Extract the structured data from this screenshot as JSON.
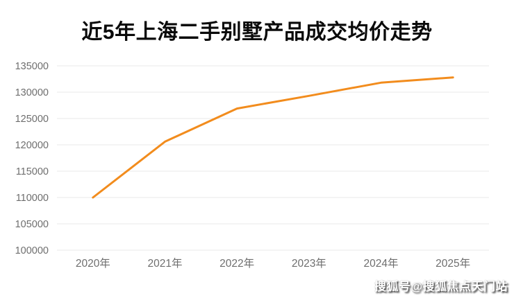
{
  "chart_data": {
    "type": "line",
    "title": "近5年上海二手别墅产品成交均价走势",
    "categories": [
      "2020年",
      "2021年",
      "2022年",
      "2023年",
      "2024年",
      "2025年"
    ],
    "values": [
      110000,
      120600,
      126900,
      129300,
      131800,
      132800
    ],
    "xlabel": "",
    "ylabel": "",
    "ylim": [
      100000,
      135000
    ],
    "ytick_interval": 5000,
    "ytick_labels": [
      "100000",
      "105000",
      "110000",
      "115000",
      "120000",
      "125000",
      "130000",
      "135000"
    ],
    "grid": "horizontal-only",
    "legend": "none",
    "line_color": "#f28c1d"
  },
  "watermark": {
    "text": "搜狐号@搜狐焦点天门站"
  },
  "colors": {
    "background": "#ffffff",
    "grid_line": "#e9e9e9",
    "axis_label": "#6e6e6e",
    "title_text": "#0a0a0a",
    "watermark_text": "#ffffff"
  }
}
